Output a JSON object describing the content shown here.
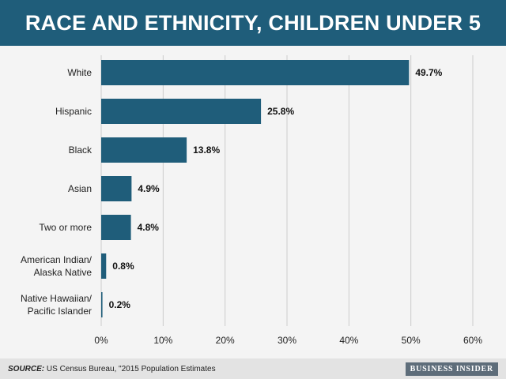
{
  "header": {
    "title": "RACE AND ETHNICITY, CHILDREN UNDER 5"
  },
  "footer": {
    "source_label": "SOURCE:",
    "source_text": " US Census Bureau, \"2015 Population Estimates",
    "logo": "BUSINESS INSIDER"
  },
  "colors": {
    "bar": "#1f5d7a",
    "title_bg": "#1f5d7a",
    "background": "#f4f4f4"
  },
  "chart_data": {
    "type": "bar",
    "orientation": "horizontal",
    "title": "RACE AND ETHNICITY, CHILDREN UNDER 5",
    "categories": [
      [
        "White"
      ],
      [
        "Hispanic"
      ],
      [
        "Black"
      ],
      [
        "Asian"
      ],
      [
        "Two or more"
      ],
      [
        "American Indian/",
        "Alaska Native"
      ],
      [
        "Native Hawaiian/",
        "Pacific Islander"
      ]
    ],
    "values": [
      49.7,
      25.8,
      13.8,
      4.9,
      4.8,
      0.8,
      0.2
    ],
    "value_labels": [
      "49.7%",
      "25.8%",
      "13.8%",
      "4.9%",
      "4.8%",
      "0.8%",
      "0.2%"
    ],
    "xlim": [
      0,
      60
    ],
    "x_ticks": [
      0,
      10,
      20,
      30,
      40,
      50,
      60
    ],
    "x_tick_labels": [
      "0%",
      "10%",
      "20%",
      "30%",
      "40%",
      "50%",
      "60%"
    ],
    "grid": true
  }
}
